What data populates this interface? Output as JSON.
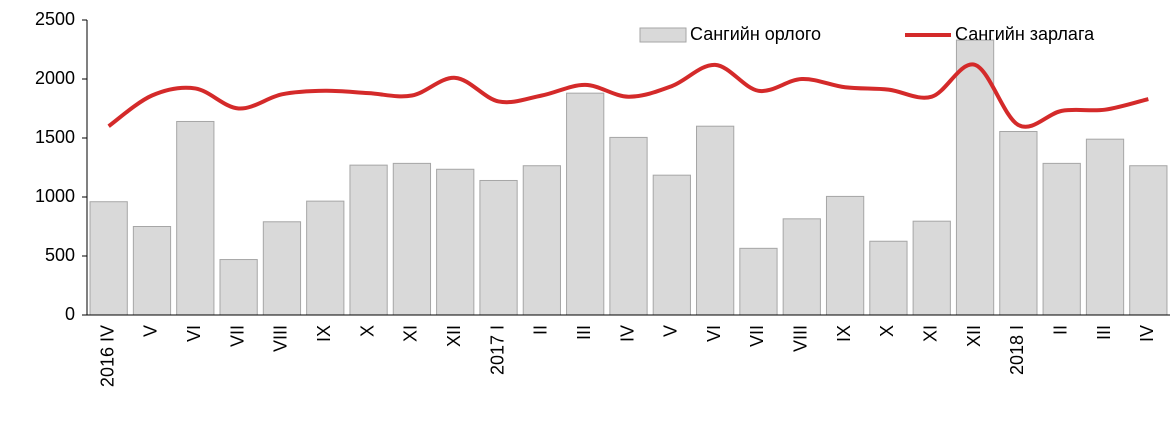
{
  "chart_data": {
    "type": "bar_line",
    "categories": [
      "2016 IV",
      "V",
      "VI",
      "VII",
      "VIII",
      "IX",
      "X",
      "XI",
      "XII",
      "2017 I",
      "II",
      "III",
      "IV",
      "V",
      "VI",
      "VII",
      "VIII",
      "IX",
      "X",
      "XI",
      "XII",
      "2018 I",
      "II",
      "III",
      "IV"
    ],
    "series": [
      {
        "name": "Сангийн орлого",
        "type": "bar",
        "color": "#d9d9d9",
        "values": [
          960,
          750,
          1640,
          470,
          790,
          965,
          1270,
          1285,
          1235,
          1140,
          1265,
          1880,
          1505,
          1185,
          1600,
          565,
          815,
          1005,
          625,
          795,
          2330,
          1555,
          1285,
          1490,
          1265
        ]
      },
      {
        "name": "Сангийн зарлага",
        "type": "line",
        "color": "#d42a2a",
        "values": [
          1600,
          1860,
          1920,
          1750,
          1870,
          1900,
          1880,
          1860,
          2010,
          1810,
          1860,
          1950,
          1850,
          1940,
          2120,
          1900,
          2000,
          1930,
          1910,
          1850,
          2120,
          1610,
          1730,
          1740,
          1830
        ]
      }
    ],
    "ylim": [
      0,
      2500
    ],
    "yticks": [
      0,
      500,
      1000,
      1500,
      2000,
      2500
    ],
    "grid": false,
    "legend": "top-right"
  }
}
